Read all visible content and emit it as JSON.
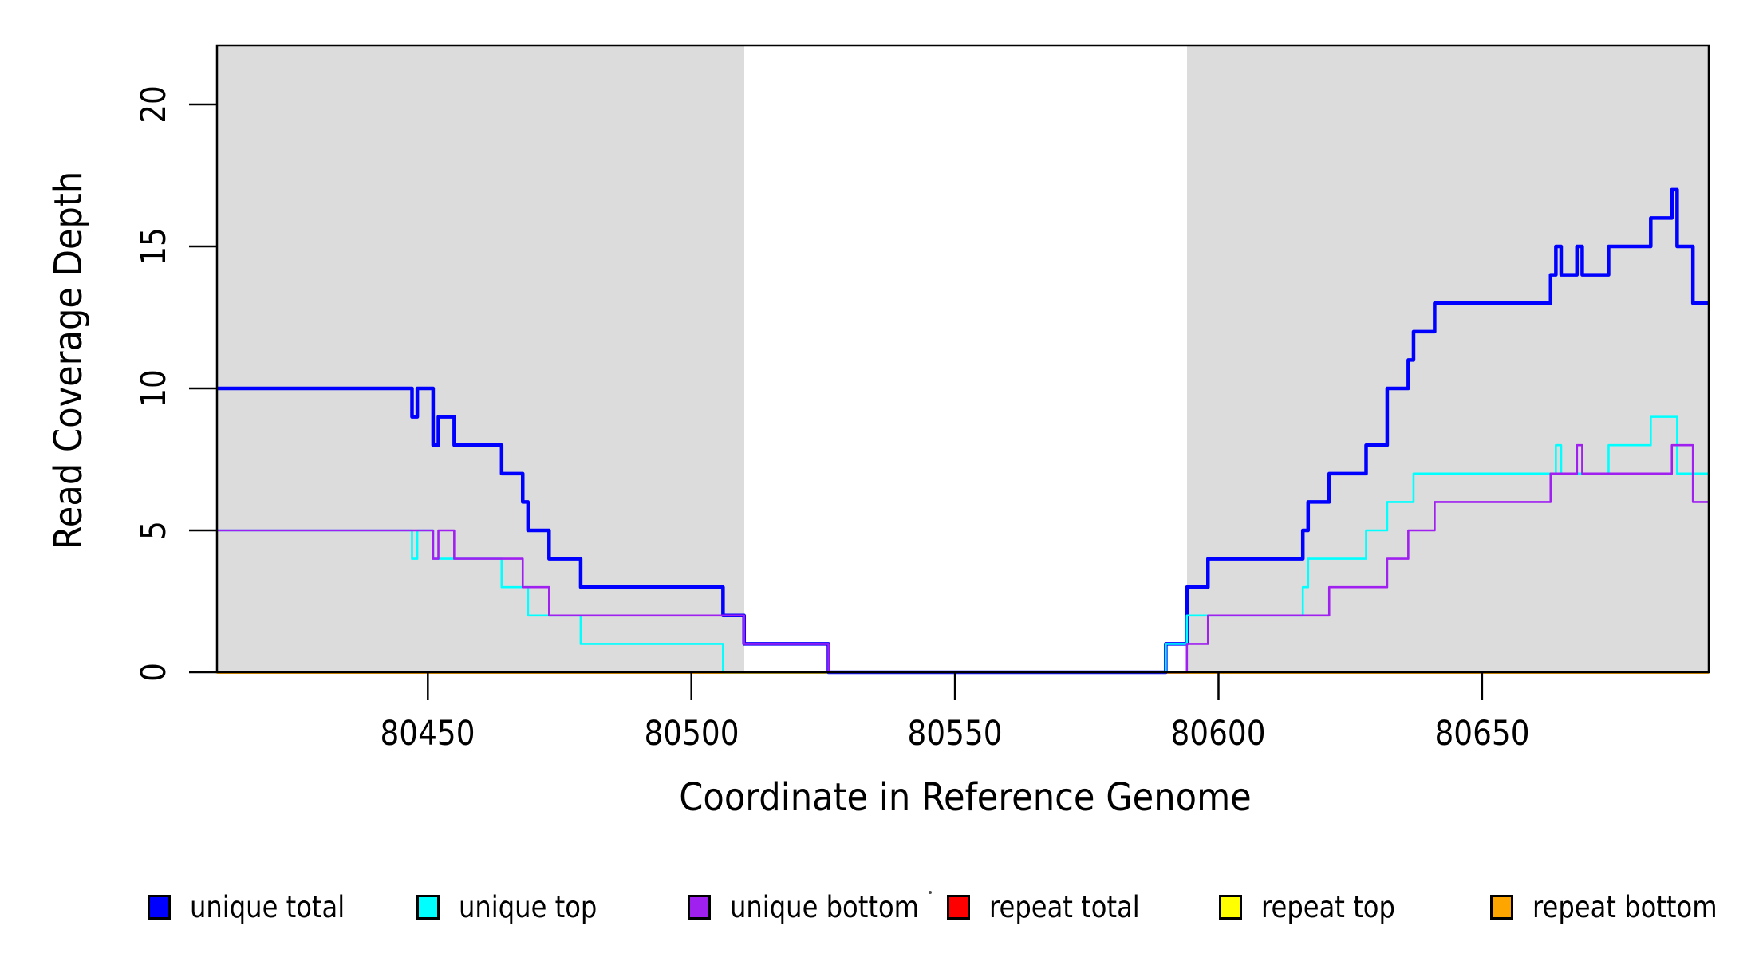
{
  "figure": {
    "background": "#ffffff",
    "text_color": "#000000"
  },
  "chart_data": {
    "type": "line",
    "subtype": "step",
    "title": "",
    "xlabel": "Coordinate in Reference Genome",
    "ylabel": "Read Coverage Depth",
    "xlim": [
      80410,
      80693
    ],
    "ylim": [
      0,
      22
    ],
    "x_ticks": [
      80450,
      80500,
      80550,
      80600,
      80650
    ],
    "y_ticks": [
      0,
      5,
      10,
      15,
      20
    ],
    "grid": false,
    "legend_position": "bottom",
    "plot_border_color": "#000000",
    "shaded_regions": [
      {
        "name": "left-gray-band",
        "x0": 80410,
        "x1": 80510,
        "color": "#DCDCDC"
      },
      {
        "name": "right-gray-band",
        "x0": 80594,
        "x1": 80693,
        "color": "#DCDCDC"
      }
    ],
    "series": [
      {
        "name": "repeat total",
        "color": "#FF0000",
        "line_width": 2.5,
        "points": [
          [
            80410,
            0
          ]
        ]
      },
      {
        "name": "repeat top",
        "color": "#FFFF00",
        "line_width": 2.5,
        "points": [
          [
            80410,
            0
          ]
        ]
      },
      {
        "name": "repeat bottom",
        "color": "#FFA500",
        "line_width": 4,
        "points": [
          [
            80410,
            0
          ]
        ]
      },
      {
        "name": "unique total",
        "color": "#0000FF",
        "line_width": 4.5,
        "points": [
          [
            80410,
            10
          ],
          [
            80447,
            9
          ],
          [
            80448,
            10
          ],
          [
            80451,
            8
          ],
          [
            80452,
            9
          ],
          [
            80455,
            8
          ],
          [
            80464,
            7
          ],
          [
            80468,
            6
          ],
          [
            80469,
            5
          ],
          [
            80473,
            4
          ],
          [
            80479,
            3
          ],
          [
            80506,
            2
          ],
          [
            80510,
            1
          ],
          [
            80526,
            0
          ],
          [
            80590,
            1
          ],
          [
            80594,
            3
          ],
          [
            80598,
            4
          ],
          [
            80616,
            5
          ],
          [
            80617,
            6
          ],
          [
            80621,
            7
          ],
          [
            80628,
            8
          ],
          [
            80632,
            10
          ],
          [
            80636,
            11
          ],
          [
            80637,
            12
          ],
          [
            80641,
            13
          ],
          [
            80663,
            14
          ],
          [
            80664,
            15
          ],
          [
            80665,
            14
          ],
          [
            80668,
            15
          ],
          [
            80669,
            14
          ],
          [
            80674,
            15
          ],
          [
            80682,
            16
          ],
          [
            80686,
            17
          ],
          [
            80687,
            15
          ],
          [
            80690,
            13
          ]
        ]
      },
      {
        "name": "unique top",
        "color": "#00FFFF",
        "line_width": 2.6,
        "points": [
          [
            80410,
            5
          ],
          [
            80447,
            4
          ],
          [
            80448,
            5
          ],
          [
            80451,
            4
          ],
          [
            80464,
            3
          ],
          [
            80469,
            2
          ],
          [
            80479,
            1
          ],
          [
            80506,
            0
          ],
          [
            80590,
            1
          ],
          [
            80594,
            2
          ],
          [
            80616,
            3
          ],
          [
            80617,
            4
          ],
          [
            80628,
            5
          ],
          [
            80632,
            6
          ],
          [
            80637,
            7
          ],
          [
            80664,
            8
          ],
          [
            80665,
            7
          ],
          [
            80674,
            8
          ],
          [
            80682,
            9
          ],
          [
            80687,
            7
          ]
        ]
      },
      {
        "name": "unique bottom",
        "color": "#A020F0",
        "line_width": 2.6,
        "points": [
          [
            80410,
            5
          ],
          [
            80451,
            4
          ],
          [
            80452,
            5
          ],
          [
            80455,
            4
          ],
          [
            80468,
            3
          ],
          [
            80473,
            2
          ],
          [
            80510,
            1
          ],
          [
            80526,
            0
          ],
          [
            80594,
            1
          ],
          [
            80598,
            2
          ],
          [
            80621,
            3
          ],
          [
            80632,
            4
          ],
          [
            80636,
            5
          ],
          [
            80641,
            6
          ],
          [
            80663,
            7
          ],
          [
            80668,
            8
          ],
          [
            80669,
            7
          ],
          [
            80686,
            8
          ],
          [
            80690,
            6
          ]
        ]
      }
    ]
  },
  "legend": {
    "entries": [
      {
        "label": "unique total",
        "color": "#0000FF"
      },
      {
        "label": "unique top",
        "color": "#00FFFF"
      },
      {
        "label": "unique bottom",
        "color": "#A020F0"
      },
      {
        "label": "repeat total",
        "color": "#FF0000"
      },
      {
        "label": "repeat top",
        "color": "#FFFF00"
      },
      {
        "label": "repeat bottom",
        "color": "#FFA500"
      }
    ]
  },
  "annotations": {
    "stray_dot_color": "#4d4d4d"
  }
}
